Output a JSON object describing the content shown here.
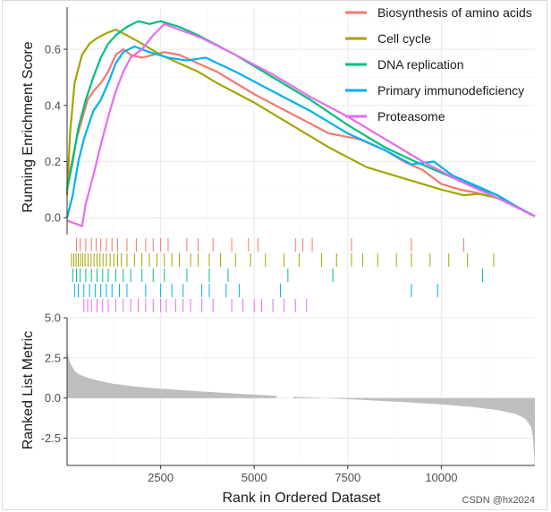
{
  "chart_data": {
    "type": "line",
    "title": "",
    "x_domain": [
      0,
      12500
    ],
    "x_ticks": [
      2500,
      5000,
      7500,
      10000
    ],
    "x_tick_labels": [
      "2500",
      "5000",
      "7500",
      "10000"
    ],
    "xlabel": "Rank in Ordered Dataset",
    "top_panel": {
      "ylabel": "Running Enrichment Score",
      "ylim": [
        -0.06,
        0.75
      ],
      "y_ticks": [
        0.0,
        0.2,
        0.4,
        0.6
      ],
      "y_tick_labels": [
        "0.0",
        "0.2",
        "0.4",
        "0.6"
      ],
      "series": [
        {
          "name": "Biosynthesis of amino acids",
          "color": "#F8766D",
          "points": [
            [
              0,
              0.12
            ],
            [
              100,
              0.18
            ],
            [
              250,
              0.28
            ],
            [
              400,
              0.35
            ],
            [
              550,
              0.42
            ],
            [
              700,
              0.45
            ],
            [
              900,
              0.48
            ],
            [
              1100,
              0.52
            ],
            [
              1300,
              0.58
            ],
            [
              1500,
              0.6
            ],
            [
              1700,
              0.58
            ],
            [
              2000,
              0.57
            ],
            [
              2300,
              0.58
            ],
            [
              2600,
              0.59
            ],
            [
              3000,
              0.58
            ],
            [
              3500,
              0.55
            ],
            [
              4000,
              0.52
            ],
            [
              5000,
              0.44
            ],
            [
              6000,
              0.37
            ],
            [
              7000,
              0.3
            ],
            [
              7800,
              0.28
            ],
            [
              8500,
              0.24
            ],
            [
              9000,
              0.2
            ],
            [
              9500,
              0.17
            ],
            [
              10000,
              0.12
            ],
            [
              10500,
              0.1
            ],
            [
              10900,
              0.09
            ],
            [
              11500,
              0.07
            ],
            [
              12000,
              0.04
            ],
            [
              12500,
              0.005
            ]
          ]
        },
        {
          "name": "Cell cycle",
          "color": "#A3A500",
          "points": [
            [
              0,
              0.08
            ],
            [
              80,
              0.3
            ],
            [
              200,
              0.48
            ],
            [
              400,
              0.58
            ],
            [
              600,
              0.62
            ],
            [
              800,
              0.64
            ],
            [
              1100,
              0.66
            ],
            [
              1300,
              0.67
            ],
            [
              1600,
              0.65
            ],
            [
              2000,
              0.62
            ],
            [
              2500,
              0.58
            ],
            [
              3000,
              0.55
            ],
            [
              3500,
              0.52
            ],
            [
              4000,
              0.48
            ],
            [
              5000,
              0.41
            ],
            [
              6000,
              0.33
            ],
            [
              7000,
              0.25
            ],
            [
              8000,
              0.18
            ],
            [
              9000,
              0.14
            ],
            [
              10000,
              0.1
            ],
            [
              10600,
              0.08
            ],
            [
              11000,
              0.085
            ],
            [
              11500,
              0.07
            ],
            [
              12000,
              0.04
            ],
            [
              12400,
              0.01
            ]
          ]
        },
        {
          "name": "DNA replication",
          "color": "#00BF7D",
          "points": [
            [
              0,
              0.1
            ],
            [
              150,
              0.2
            ],
            [
              300,
              0.32
            ],
            [
              500,
              0.42
            ],
            [
              700,
              0.5
            ],
            [
              900,
              0.57
            ],
            [
              1100,
              0.62
            ],
            [
              1300,
              0.65
            ],
            [
              1600,
              0.68
            ],
            [
              1900,
              0.7
            ],
            [
              2200,
              0.69
            ],
            [
              2500,
              0.7
            ],
            [
              3000,
              0.68
            ],
            [
              3500,
              0.65
            ],
            [
              4500,
              0.58
            ],
            [
              5500,
              0.5
            ],
            [
              6500,
              0.42
            ],
            [
              7500,
              0.33
            ],
            [
              8500,
              0.25
            ],
            [
              9300,
              0.2
            ],
            [
              10000,
              0.16
            ],
            [
              10700,
              0.12
            ],
            [
              11500,
              0.08
            ],
            [
              12000,
              0.04
            ],
            [
              12500,
              0.005
            ]
          ]
        },
        {
          "name": "Primary immunodeficiency",
          "color": "#00B0F6",
          "points": [
            [
              0,
              0.0
            ],
            [
              150,
              0.08
            ],
            [
              300,
              0.2
            ],
            [
              450,
              0.28
            ],
            [
              700,
              0.38
            ],
            [
              900,
              0.42
            ],
            [
              1100,
              0.48
            ],
            [
              1300,
              0.55
            ],
            [
              1500,
              0.59
            ],
            [
              1800,
              0.61
            ],
            [
              2200,
              0.59
            ],
            [
              2700,
              0.57
            ],
            [
              3200,
              0.56
            ],
            [
              3700,
              0.57
            ],
            [
              4500,
              0.52
            ],
            [
              5500,
              0.45
            ],
            [
              6500,
              0.38
            ],
            [
              7500,
              0.3
            ],
            [
              8500,
              0.24
            ],
            [
              9200,
              0.19
            ],
            [
              9800,
              0.2
            ],
            [
              10300,
              0.15
            ],
            [
              11000,
              0.11
            ],
            [
              11500,
              0.08
            ],
            [
              12000,
              0.04
            ],
            [
              12500,
              0.005
            ]
          ]
        },
        {
          "name": "Proteasome",
          "color": "#E76BF3",
          "points": [
            [
              0,
              -0.01
            ],
            [
              200,
              -0.02
            ],
            [
              400,
              -0.03
            ],
            [
              500,
              0.05
            ],
            [
              700,
              0.15
            ],
            [
              900,
              0.26
            ],
            [
              1100,
              0.36
            ],
            [
              1300,
              0.45
            ],
            [
              1500,
              0.52
            ],
            [
              1700,
              0.57
            ],
            [
              2000,
              0.6
            ],
            [
              2300,
              0.65
            ],
            [
              2600,
              0.69
            ],
            [
              3000,
              0.67
            ],
            [
              3600,
              0.64
            ],
            [
              4500,
              0.58
            ],
            [
              5500,
              0.51
            ],
            [
              6500,
              0.43
            ],
            [
              7500,
              0.36
            ],
            [
              8500,
              0.28
            ],
            [
              9500,
              0.2
            ],
            [
              10500,
              0.13
            ],
            [
              11500,
              0.07
            ],
            [
              12500,
              0.005
            ]
          ]
        }
      ]
    },
    "rug_panel": {
      "rows": [
        {
          "name": "Biosynthesis of amino acids",
          "color": "#F8766D",
          "positions": [
            250,
            350,
            500,
            650,
            780,
            900,
            1050,
            1200,
            1350,
            1600,
            1850,
            2100,
            2300,
            2500,
            2700,
            3200,
            3500,
            3900,
            4400,
            4850,
            5100,
            6100,
            6300,
            6550,
            7600,
            9200,
            10600
          ]
        },
        {
          "name": "Cell cycle",
          "color": "#A3A500",
          "positions": [
            120,
            180,
            240,
            300,
            360,
            420,
            480,
            560,
            640,
            720,
            800,
            880,
            960,
            1050,
            1150,
            1250,
            1350,
            1450,
            1600,
            1800,
            2000,
            2200,
            2400,
            2600,
            2800,
            3000,
            3300,
            3500,
            3800,
            4100,
            4500,
            4900,
            5300,
            5800,
            6200,
            6800,
            7200,
            7600,
            7900,
            8300,
            8800,
            9200,
            9700,
            10200,
            10700,
            11400
          ]
        },
        {
          "name": "DNA replication",
          "color": "#00BF7D",
          "positions": [
            150,
            250,
            350,
            500,
            650,
            800,
            950,
            1100,
            1300,
            1500,
            1700,
            2000,
            2300,
            2600,
            3200,
            3800,
            4300,
            5900,
            7100,
            11100
          ]
        },
        {
          "name": "Primary immunodeficiency",
          "color": "#00B0F6",
          "positions": [
            200,
            300,
            450,
            600,
            750,
            900,
            1050,
            1200,
            1400,
            1600,
            2100,
            2500,
            2800,
            3100,
            3600,
            3800,
            4250,
            4600,
            5700,
            9200,
            9900
          ]
        },
        {
          "name": "Proteasome",
          "color": "#E76BF3",
          "positions": [
            450,
            550,
            650,
            800,
            950,
            1100,
            1300,
            1500,
            1700,
            1900,
            2100,
            2300,
            2500,
            2650,
            2900,
            3100,
            3300,
            3600,
            3900,
            4400,
            4700,
            5000,
            5200,
            5500,
            5800,
            6100,
            6400
          ]
        }
      ]
    },
    "bottom_panel": {
      "ylabel": "Ranked List Metric",
      "ylim": [
        -4.2,
        5.0
      ],
      "y_ticks": [
        -2.5,
        0.0,
        2.5,
        5.0
      ],
      "y_tick_labels": [
        "-2.5",
        "0.0",
        "2.5",
        "5.0"
      ],
      "fill_color": "#BEBEBE",
      "metric_points": [
        [
          0,
          2.9
        ],
        [
          50,
          2.4
        ],
        [
          100,
          2.1
        ],
        [
          200,
          1.7
        ],
        [
          300,
          1.5
        ],
        [
          500,
          1.3
        ],
        [
          800,
          1.1
        ],
        [
          1200,
          0.9
        ],
        [
          1800,
          0.72
        ],
        [
          2500,
          0.58
        ],
        [
          3500,
          0.42
        ],
        [
          4500,
          0.28
        ],
        [
          5500,
          0.15
        ],
        [
          6500,
          0.04
        ],
        [
          7000,
          -0.02
        ],
        [
          8000,
          -0.13
        ],
        [
          9000,
          -0.25
        ],
        [
          10000,
          -0.4
        ],
        [
          10800,
          -0.55
        ],
        [
          11500,
          -0.75
        ],
        [
          12000,
          -1.0
        ],
        [
          12250,
          -1.3
        ],
        [
          12400,
          -1.8
        ],
        [
          12450,
          -2.5
        ],
        [
          12500,
          -4.3
        ]
      ],
      "gap_range": [
        5600,
        6050
      ]
    },
    "legend": {
      "placement": "top-right",
      "entries": [
        {
          "label": "Biosynthesis of amino acids",
          "color": "#F8766D"
        },
        {
          "label": "Cell cycle",
          "color": "#A3A500"
        },
        {
          "label": "DNA replication",
          "color": "#00BF7D"
        },
        {
          "label": "Primary immunodeficiency",
          "color": "#00B0F6"
        },
        {
          "label": "Proteasome",
          "color": "#E76BF3"
        }
      ]
    }
  },
  "watermark": "CSDN @hx2024"
}
